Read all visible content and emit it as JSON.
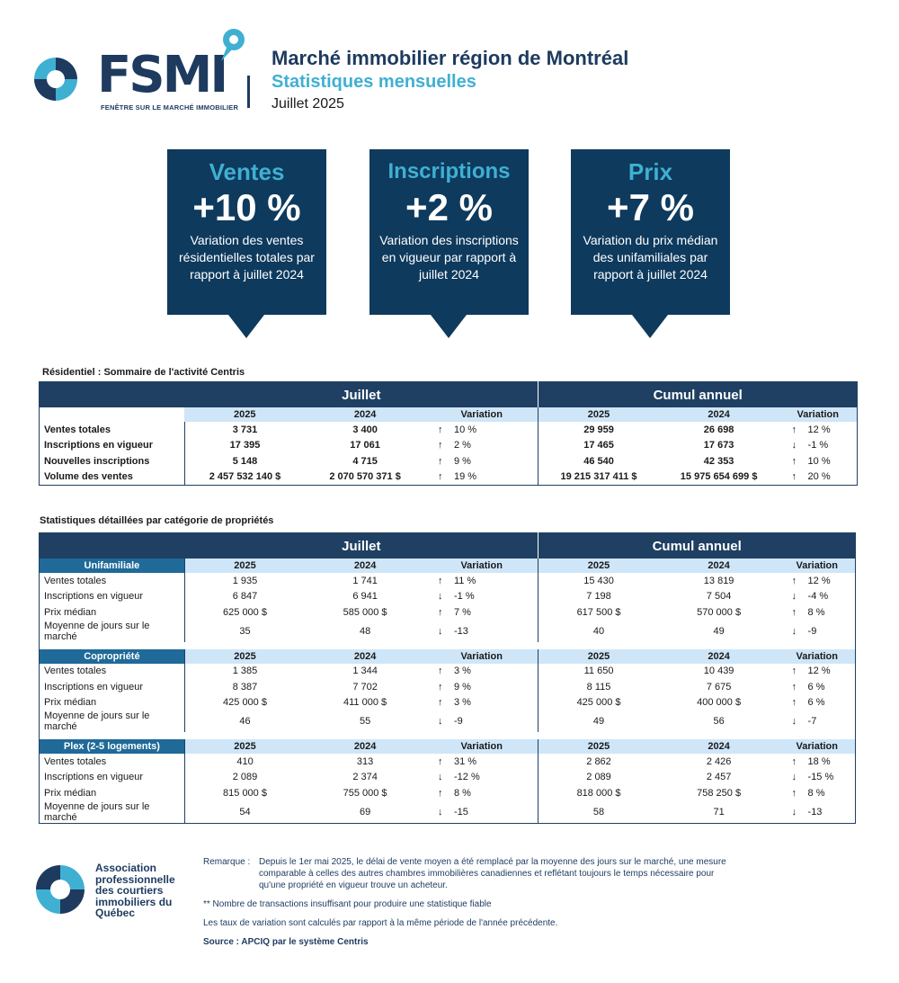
{
  "header": {
    "logo_word": "FSMI",
    "logo_tagline": "FENÊTRE SUR LE MARCHÉ IMMOBILIER",
    "title": "Marché immobilier région de Montréal",
    "subtitle": "Statistiques mensuelles",
    "period": "Juillet 2025"
  },
  "colors": {
    "navy": "#0e3a5d",
    "accent": "#3fb0d2",
    "table_header": "#1f4063",
    "subheader": "#cfe6f8"
  },
  "callouts": [
    {
      "title": "Ventes",
      "value": "+10 %",
      "text": "Variation des ventes résidentielles totales par rapport à juillet 2024"
    },
    {
      "title": "Inscriptions",
      "value": "+2 %",
      "text": "Variation des inscriptions en vigueur par rapport à juillet 2024"
    },
    {
      "title": "Prix",
      "value": "+7 %",
      "text": "Variation du prix médian des unifamiliales par rapport à juillet 2024"
    }
  ],
  "summary": {
    "caption": "Résidentiel : Sommaire de l'activité Centris",
    "group_month": "Juillet",
    "group_ytd": "Cumul annuel",
    "col_2025": "2025",
    "col_2024": "2024",
    "col_var": "Variation",
    "rows": [
      {
        "label": "Ventes totales",
        "m25": "3 731",
        "m24": "3 400",
        "mdir": "↑",
        "mvar": "10 %",
        "y25": "29 959",
        "y24": "26 698",
        "ydir": "↑",
        "yvar": "12 %"
      },
      {
        "label": "Inscriptions en vigueur",
        "m25": "17 395",
        "m24": "17 061",
        "mdir": "↑",
        "mvar": "2 %",
        "y25": "17 465",
        "y24": "17 673",
        "ydir": "↓",
        "yvar": "-1 %"
      },
      {
        "label": "Nouvelles inscriptions",
        "m25": "5 148",
        "m24": "4 715",
        "mdir": "↑",
        "mvar": "9 %",
        "y25": "46 540",
        "y24": "42 353",
        "ydir": "↑",
        "yvar": "10 %"
      },
      {
        "label": "Volume des ventes",
        "m25": "2 457 532 140 $",
        "m24": "2 070 570 371 $",
        "mdir": "↑",
        "mvar": "19 %",
        "y25": "19 215 317 411 $",
        "y24": "15 975 654 699 $",
        "ydir": "↑",
        "yvar": "20 %"
      }
    ]
  },
  "detail": {
    "caption": "Statistiques détaillées par catégorie de propriétés",
    "group_month": "Juillet",
    "group_ytd": "Cumul annuel",
    "categories": [
      {
        "name": "Unifamiliale",
        "rows": [
          {
            "label": "Ventes totales",
            "m25": "1 935",
            "m24": "1 741",
            "mdir": "↑",
            "mvar": "11 %",
            "y25": "15 430",
            "y24": "13 819",
            "ydir": "↑",
            "yvar": "12 %"
          },
          {
            "label": "Inscriptions en vigueur",
            "m25": "6 847",
            "m24": "6 941",
            "mdir": "↓",
            "mvar": "-1 %",
            "y25": "7 198",
            "y24": "7 504",
            "ydir": "↓",
            "yvar": "-4 %"
          },
          {
            "label": "Prix médian",
            "m25": "625 000 $",
            "m24": "585 000 $",
            "mdir": "↑",
            "mvar": "7 %",
            "y25": "617 500 $",
            "y24": "570 000 $",
            "ydir": "↑",
            "yvar": "8 %"
          },
          {
            "label": "Moyenne de jours sur le marché",
            "m25": "35",
            "m24": "48",
            "mdir": "↓",
            "mvar": "-13",
            "y25": "40",
            "y24": "49",
            "ydir": "↓",
            "yvar": "-9"
          }
        ]
      },
      {
        "name": "Copropriété",
        "rows": [
          {
            "label": "Ventes totales",
            "m25": "1 385",
            "m24": "1 344",
            "mdir": "↑",
            "mvar": "3 %",
            "y25": "11 650",
            "y24": "10 439",
            "ydir": "↑",
            "yvar": "12 %"
          },
          {
            "label": "Inscriptions en vigueur",
            "m25": "8 387",
            "m24": "7 702",
            "mdir": "↑",
            "mvar": "9 %",
            "y25": "8 115",
            "y24": "7 675",
            "ydir": "↑",
            "yvar": "6 %"
          },
          {
            "label": "Prix médian",
            "m25": "425 000 $",
            "m24": "411 000 $",
            "mdir": "↑",
            "mvar": "3 %",
            "y25": "425 000 $",
            "y24": "400 000 $",
            "ydir": "↑",
            "yvar": "6 %"
          },
          {
            "label": "Moyenne de jours sur le marché",
            "m25": "46",
            "m24": "55",
            "mdir": "↓",
            "mvar": "-9",
            "y25": "49",
            "y24": "56",
            "ydir": "↓",
            "yvar": "-7"
          }
        ]
      },
      {
        "name": "Plex (2-5 logements)",
        "rows": [
          {
            "label": "Ventes totales",
            "m25": "410",
            "m24": "313",
            "mdir": "↑",
            "mvar": "31 %",
            "y25": "2 862",
            "y24": "2 426",
            "ydir": "↑",
            "yvar": "18 %"
          },
          {
            "label": "Inscriptions en vigueur",
            "m25": "2 089",
            "m24": "2 374",
            "mdir": "↓",
            "mvar": "-12 %",
            "y25": "2 089",
            "y24": "2 457",
            "ydir": "↓",
            "yvar": "-15 %"
          },
          {
            "label": "Prix médian",
            "m25": "815 000 $",
            "m24": "755 000 $",
            "mdir": "↑",
            "mvar": "8 %",
            "y25": "818 000 $",
            "y24": "758 250 $",
            "ydir": "↑",
            "yvar": "8 %"
          },
          {
            "label": "Moyenne de jours sur le marché",
            "m25": "54",
            "m24": "69",
            "mdir": "↓",
            "mvar": "-15",
            "y25": "58",
            "y24": "71",
            "ydir": "↓",
            "yvar": "-13"
          }
        ]
      }
    ]
  },
  "footer": {
    "association_name": "Association professionnelle des courtiers immobiliers du Québec",
    "note_label": "Remarque :",
    "note_text": "Depuis le 1er mai 2025, le délai de vente moyen a été remplacé par la moyenne des jours sur le marché, une mesure comparable à celles des autres chambres immobilières canadiennes et reflétant toujours le temps nécessaire pour qu'une propriété en vigueur trouve un acheteur.",
    "note_insufficient": "** Nombre de transactions insuffisant pour produire une statistique fiable",
    "note_rates": "Les taux de variation sont calculés par rapport à la même période de l'année précédente.",
    "source": "Source : APCIQ par le système Centris"
  }
}
